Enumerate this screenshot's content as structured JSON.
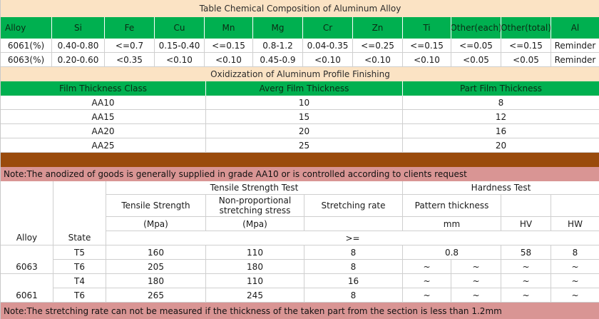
{
  "chem": {
    "title": "Table Chemical Composition of Aluminum Alloy",
    "headers": [
      "Alloy",
      "Si",
      "Fe",
      "Cu",
      "Mn",
      "Mg",
      "Cr",
      "Zn",
      "Ti",
      "Other(each)",
      "Other(total)",
      "Al"
    ],
    "rows": [
      [
        "6061(%)",
        "0.40-0.80",
        "<=0.7",
        "0.15-0.40",
        "<=0.15",
        "0.8-1.2",
        "0.04-0.35",
        "<=0.25",
        "<=0.15",
        "<=0.05",
        "<=0.15",
        "Reminder"
      ],
      [
        "6063(%)",
        "0.20-0.60",
        "<0.35",
        "<0.10",
        "<0.10",
        "0.45-0.9",
        "<0.10",
        "<0.10",
        "<0.10",
        "<0.05",
        "<0.05",
        "Reminder"
      ]
    ]
  },
  "oxid": {
    "title": "Oxidizzation of Aluminum Profile Finishing",
    "headers": [
      "Film Thickness Class",
      "Averg Film Thickness",
      "Part Film Thickness"
    ],
    "rows": [
      [
        "AA10",
        "10",
        "8"
      ],
      [
        "AA15",
        "15",
        "12"
      ],
      [
        "AA20",
        "20",
        "16"
      ],
      [
        "AA25",
        "25",
        "20"
      ]
    ]
  },
  "note1": "Note:The anodized of goods is generally supplied in grade AA10 or is controlled according to clients request",
  "mech": {
    "tensile_group": "Tensile Strength Test",
    "hardness_group": "Hardness Test",
    "tensile_strength": "Tensile Strength",
    "nonprop": "Non-proportional stretching stress",
    "stretch_rate": "Stretching rate",
    "pattern": "Pattern thickness",
    "mpa1": "(Mpa)",
    "mpa2": "(Mpa)",
    "mm": "mm",
    "hv": "HV",
    "hw": "HW",
    "alloy": "Alloy",
    "state": "State",
    "gte": ">=",
    "alloy_6063": "6063",
    "alloy_6061": "6061",
    "rows": [
      [
        "T5",
        "160",
        "110",
        "8",
        "0.8",
        "",
        "58",
        "8"
      ],
      [
        "T6",
        "205",
        "180",
        "8",
        "~",
        "~",
        "~",
        "~"
      ],
      [
        "T4",
        "180",
        "110",
        "16",
        "~",
        "~",
        "~",
        "~"
      ],
      [
        "T6",
        "265",
        "245",
        "8",
        "~",
        "~",
        "~",
        "~"
      ]
    ]
  },
  "note2": "Note:The stretching rate can not be measured if the thickness of the taken part from the section is less than 1.2mm",
  "colors": {
    "green": "#00b050",
    "title_band": "#fbe3c4",
    "brown": "#9a4b0c",
    "note_pink": "#d99594"
  }
}
